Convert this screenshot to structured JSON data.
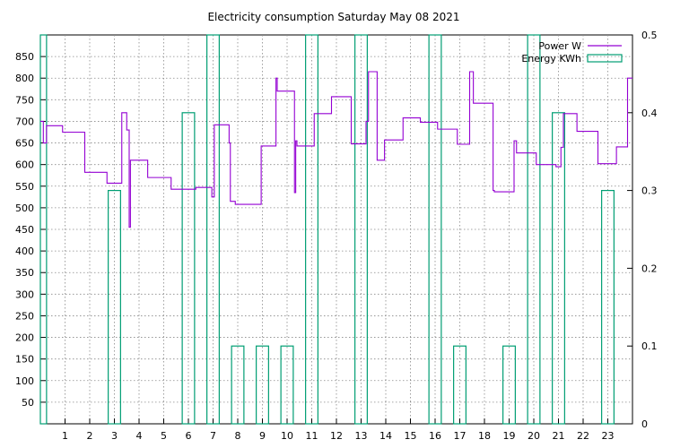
{
  "chart_data": {
    "type": "line",
    "title": "Electricity consumption Saturday May 08 2021",
    "xlabel": "",
    "ylabel": "",
    "xlim": [
      0,
      24
    ],
    "ylim": [
      0,
      900
    ],
    "y2lim": [
      0,
      0.5
    ],
    "x_ticks": [
      1,
      2,
      3,
      4,
      5,
      6,
      7,
      8,
      9,
      10,
      11,
      12,
      13,
      14,
      15,
      16,
      17,
      18,
      19,
      20,
      21,
      22,
      23
    ],
    "y_ticks": [
      50,
      100,
      150,
      200,
      250,
      300,
      350,
      400,
      450,
      500,
      550,
      600,
      650,
      700,
      750,
      800,
      850
    ],
    "y2_ticks": [
      0,
      0.1,
      0.2,
      0.3,
      0.4,
      0.5
    ],
    "grid": true,
    "legend_position": "top-right",
    "series": [
      {
        "name": "Power W",
        "axis": "y1",
        "color": "#9400d3",
        "style": "steps",
        "points": [
          [
            0.0,
            700
          ],
          [
            0.12,
            650
          ],
          [
            0.25,
            690
          ],
          [
            0.9,
            675
          ],
          [
            1.8,
            582
          ],
          [
            2.7,
            557
          ],
          [
            3.3,
            720
          ],
          [
            3.5,
            680
          ],
          [
            3.6,
            455
          ],
          [
            3.65,
            610
          ],
          [
            4.35,
            570
          ],
          [
            5.3,
            543
          ],
          [
            6.3,
            547
          ],
          [
            6.95,
            525
          ],
          [
            7.05,
            692
          ],
          [
            7.65,
            650
          ],
          [
            7.7,
            515
          ],
          [
            7.9,
            508
          ],
          [
            8.95,
            643
          ],
          [
            9.55,
            800
          ],
          [
            9.6,
            770
          ],
          [
            10.3,
            535
          ],
          [
            10.35,
            655
          ],
          [
            10.4,
            643
          ],
          [
            11.1,
            718
          ],
          [
            11.8,
            757
          ],
          [
            12.6,
            648
          ],
          [
            13.2,
            700
          ],
          [
            13.3,
            815
          ],
          [
            13.65,
            610
          ],
          [
            13.95,
            657
          ],
          [
            14.7,
            708
          ],
          [
            15.4,
            698
          ],
          [
            16.1,
            682
          ],
          [
            16.9,
            647
          ],
          [
            17.4,
            815
          ],
          [
            17.55,
            742
          ],
          [
            18.35,
            540
          ],
          [
            18.4,
            537
          ],
          [
            19.2,
            655
          ],
          [
            19.3,
            627
          ],
          [
            20.1,
            600
          ],
          [
            20.9,
            595
          ],
          [
            21.1,
            640
          ],
          [
            21.2,
            718
          ],
          [
            21.75,
            677
          ],
          [
            22.6,
            602
          ],
          [
            23.35,
            641
          ],
          [
            23.8,
            800
          ],
          [
            24.0,
            800
          ]
        ]
      },
      {
        "name": "Energy KWh",
        "axis": "y2",
        "color": "#009e73",
        "style": "impulse-boxes",
        "points": [
          [
            0.0,
            0.5
          ],
          [
            3.0,
            0.3
          ],
          [
            6.0,
            0.4
          ],
          [
            7.0,
            0.5
          ],
          [
            8.0,
            0.1
          ],
          [
            9.0,
            0.1
          ],
          [
            10.0,
            0.1
          ],
          [
            11.0,
            0.5
          ],
          [
            13.0,
            0.5
          ],
          [
            16.0,
            0.5
          ],
          [
            17.0,
            0.1
          ],
          [
            19.0,
            0.1
          ],
          [
            20.0,
            0.5
          ],
          [
            21.0,
            0.4
          ],
          [
            23.0,
            0.3
          ]
        ]
      }
    ]
  }
}
